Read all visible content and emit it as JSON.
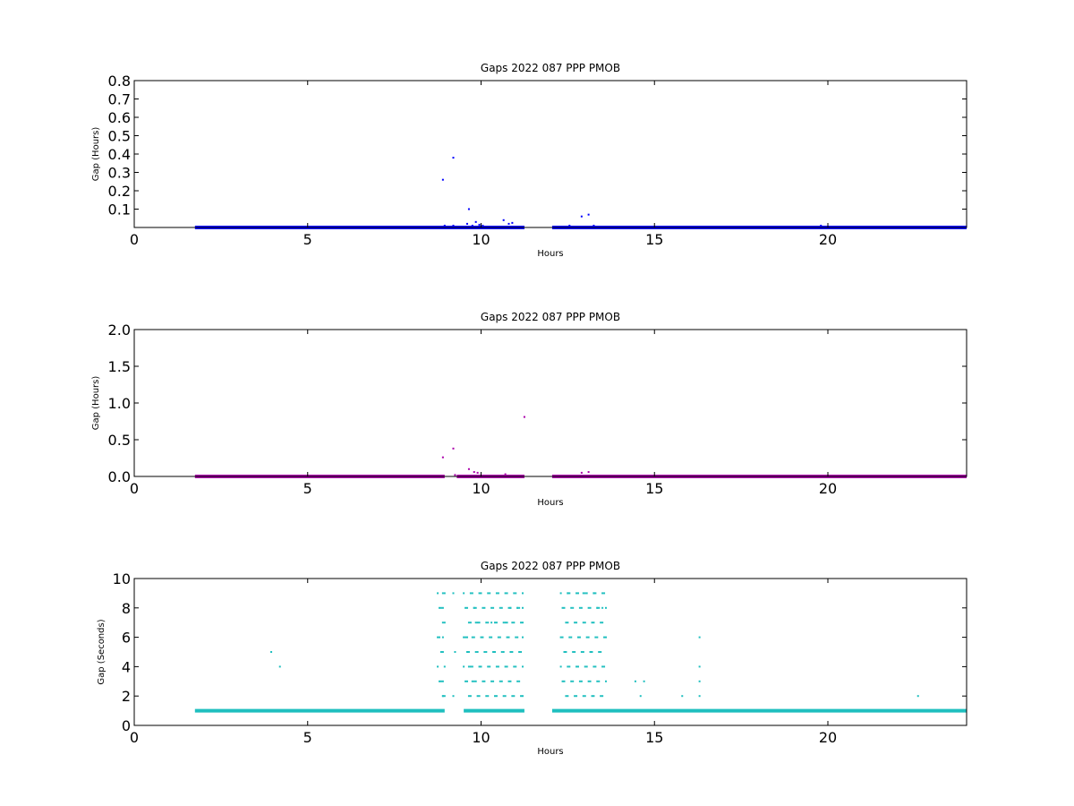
{
  "chart_data": [
    {
      "type": "scatter",
      "title": "Gaps 2022 087 PPP  PMOB",
      "xlabel": "Hours",
      "ylabel": "Gap (Hours)",
      "xlim": [
        0,
        24
      ],
      "ylim": [
        0,
        0.8
      ],
      "xticks": [
        "0",
        "5",
        "10",
        "15",
        "20"
      ],
      "yticks": [
        "0.1",
        "0.2",
        "0.3",
        "0.4",
        "0.5",
        "0.6",
        "0.7",
        "0.8"
      ],
      "color": "#0000ff",
      "baseline": {
        "value": 0,
        "segments": [
          [
            1.75,
            11.25
          ],
          [
            12.05,
            24.0
          ]
        ]
      },
      "points": [
        [
          8.9,
          0.26
        ],
        [
          9.2,
          0.38
        ],
        [
          9.65,
          0.1
        ],
        [
          9.6,
          0.02
        ],
        [
          9.75,
          0.01
        ],
        [
          9.85,
          0.03
        ],
        [
          9.95,
          0.015
        ],
        [
          10.05,
          0.01
        ],
        [
          10.65,
          0.04
        ],
        [
          10.8,
          0.02
        ],
        [
          10.9,
          0.025
        ],
        [
          12.55,
          0.01
        ],
        [
          12.9,
          0.06
        ],
        [
          13.1,
          0.07
        ],
        [
          13.25,
          0.01
        ],
        [
          19.8,
          0.01
        ],
        [
          8.95,
          0.01
        ],
        [
          9.2,
          0.01
        ]
      ]
    },
    {
      "type": "scatter",
      "title": "Gaps 2022 087 PPP  PMOB",
      "xlabel": "Hours",
      "ylabel": "Gap (Hours)",
      "xlim": [
        0,
        24
      ],
      "ylim": [
        0,
        2.0
      ],
      "xticks": [
        "0",
        "5",
        "10",
        "15",
        "20"
      ],
      "yticks": [
        "0.0",
        "0.5",
        "1.0",
        "1.5",
        "2.0"
      ],
      "color": "#aa00aa",
      "baseline": {
        "value": 0,
        "segments": [
          [
            1.75,
            8.95
          ],
          [
            9.3,
            11.25
          ],
          [
            12.05,
            24.0
          ]
        ]
      },
      "points": [
        [
          8.9,
          0.26
        ],
        [
          9.2,
          0.38
        ],
        [
          9.65,
          0.1
        ],
        [
          9.8,
          0.06
        ],
        [
          9.9,
          0.05
        ],
        [
          10.7,
          0.03
        ],
        [
          11.25,
          0.81
        ],
        [
          12.9,
          0.05
        ],
        [
          13.1,
          0.06
        ],
        [
          9.25,
          0.02
        ]
      ]
    },
    {
      "type": "scatter",
      "title": "Gaps 2022 087 PPP  PMOB",
      "xlabel": "Hours",
      "ylabel": "Gap (Seconds)",
      "xlim": [
        0,
        24
      ],
      "ylim": [
        0,
        10
      ],
      "xticks": [
        "0",
        "5",
        "10",
        "15",
        "20"
      ],
      "yticks": [
        "0",
        "2",
        "4",
        "6",
        "8",
        "10"
      ],
      "color": "#1fbfbf",
      "baseline": {
        "value": 1,
        "segments": [
          [
            1.75,
            8.95
          ],
          [
            9.5,
            11.25
          ],
          [
            12.05,
            24.0
          ]
        ]
      },
      "clusters": [
        [
          8.75,
          9.0,
          2,
          9
        ],
        [
          9.5,
          11.25,
          2,
          9
        ],
        [
          12.3,
          13.65,
          2,
          9
        ]
      ],
      "points": [
        [
          3.95,
          5
        ],
        [
          4.2,
          4
        ],
        [
          8.9,
          9
        ],
        [
          8.9,
          8
        ],
        [
          8.9,
          6
        ],
        [
          8.9,
          3
        ],
        [
          8.9,
          2
        ],
        [
          9.2,
          9
        ],
        [
          9.25,
          5
        ],
        [
          9.2,
          2
        ],
        [
          9.6,
          6
        ],
        [
          9.65,
          4
        ],
        [
          9.75,
          3
        ],
        [
          9.8,
          8
        ],
        [
          9.85,
          7
        ],
        [
          10.3,
          7
        ],
        [
          10.75,
          7
        ],
        [
          10.85,
          8
        ],
        [
          11.05,
          8
        ],
        [
          11.2,
          8
        ],
        [
          11.2,
          6
        ],
        [
          12.5,
          9
        ],
        [
          12.95,
          9
        ],
        [
          13.25,
          9
        ],
        [
          13.35,
          8
        ],
        [
          13.5,
          8
        ],
        [
          14.45,
          3
        ],
        [
          14.6,
          2
        ],
        [
          14.7,
          3
        ],
        [
          15.8,
          2
        ],
        [
          16.3,
          6
        ],
        [
          16.3,
          4
        ],
        [
          16.3,
          3
        ],
        [
          16.3,
          2
        ],
        [
          22.6,
          2
        ]
      ]
    }
  ]
}
